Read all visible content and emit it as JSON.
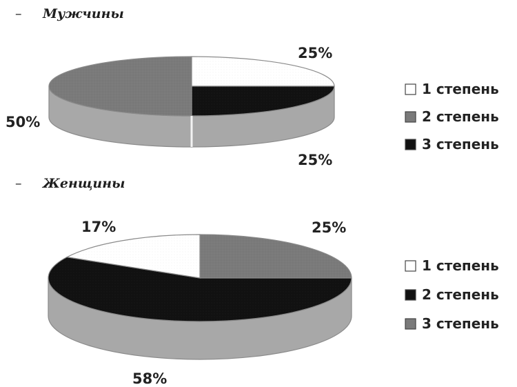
{
  "chart_data": [
    {
      "type": "pie",
      "title": "Мужчины",
      "series": [
        {
          "name": "1 степень",
          "value": 25,
          "label": "25%"
        },
        {
          "name": "2 степень",
          "value": 50,
          "label": "50%"
        },
        {
          "name": "3 степень",
          "value": 25,
          "label": "25%"
        }
      ],
      "legend": [
        "1 степень",
        "2 степень",
        "3 степень"
      ],
      "legend_position": "right",
      "style": "3d"
    },
    {
      "type": "pie",
      "title": "Женщины",
      "series": [
        {
          "name": "1 степень",
          "value": 17,
          "label": "17%"
        },
        {
          "name": "2 степень",
          "value": 58,
          "label": "58%"
        },
        {
          "name": "3 степень",
          "value": 25,
          "label": "25%"
        }
      ],
      "legend": [
        "1 степень",
        "2 степень",
        "3 степень"
      ],
      "legend_position": "right",
      "style": "3d"
    }
  ],
  "title_prefix": "–",
  "colors": {
    "white": "#ffffff",
    "dark_gray": "#7a7a7a",
    "black": "#111111",
    "side": "#a8a8a8",
    "outline": "#8a8a8a"
  }
}
